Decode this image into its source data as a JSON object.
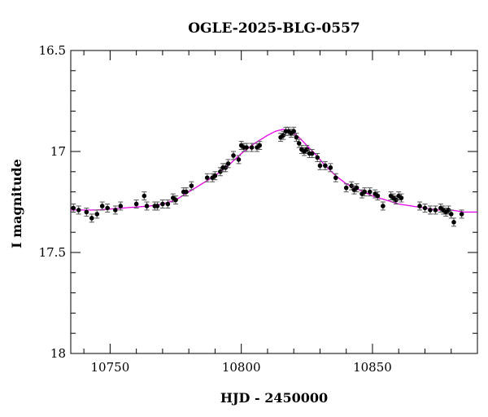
{
  "chart_data": {
    "type": "scatter",
    "title": "OGLE-2025-BLG-0557",
    "xlabel": "HJD - 2450000",
    "ylabel": "I magnitude",
    "xlim": [
      10735,
      10890
    ],
    "ylim": [
      16.5,
      18.0
    ],
    "y_inverted": true,
    "x_ticks": [
      10750,
      10800,
      10850
    ],
    "x_tick_labels": [
      "10750",
      "10800",
      "10850"
    ],
    "y_ticks": [
      16.5,
      17.0,
      17.5,
      18.0
    ],
    "y_tick_labels": [
      "16.5",
      "17",
      "17.5",
      "18"
    ],
    "grid": false,
    "legend": "none",
    "colors": {
      "points": "#000000",
      "errorbars": "#555555",
      "model": "#e600e6",
      "frame": "#000000"
    },
    "series": [
      {
        "kind": "points-with-errorbars",
        "x": [
          10736,
          10738,
          10741,
          10743,
          10745,
          10747,
          10749,
          10752,
          10754,
          10760,
          10763,
          10764,
          10767,
          10768,
          10770,
          10772,
          10774,
          10775,
          10778,
          10779,
          10781,
          10787,
          10789,
          10790,
          10792,
          10793,
          10794,
          10795,
          10797,
          10799,
          10800,
          10801,
          10802,
          10804,
          10806,
          10807,
          10815,
          10816,
          10817,
          10818,
          10819,
          10820,
          10821,
          10822,
          10823,
          10824,
          10825,
          10826,
          10827,
          10829,
          10830,
          10832,
          10834,
          10836,
          10840,
          10842,
          10843,
          10844,
          10846,
          10847,
          10849,
          10851,
          10852,
          10854,
          10857,
          10858,
          10859,
          10860,
          10861,
          10868,
          10870,
          10872,
          10874,
          10876,
          10877,
          10878,
          10879,
          10880,
          10881,
          10884
        ],
        "y": [
          17.28,
          17.29,
          17.3,
          17.33,
          17.31,
          17.27,
          17.28,
          17.29,
          17.27,
          17.26,
          17.22,
          17.27,
          17.27,
          17.27,
          17.26,
          17.26,
          17.23,
          17.24,
          17.2,
          17.2,
          17.17,
          17.13,
          17.13,
          17.12,
          17.1,
          17.08,
          17.08,
          17.06,
          17.02,
          17.04,
          16.97,
          16.98,
          16.98,
          16.98,
          16.98,
          16.97,
          16.93,
          16.92,
          16.9,
          16.9,
          16.91,
          16.9,
          16.93,
          16.96,
          16.99,
          17.0,
          16.99,
          17.01,
          17.01,
          17.03,
          17.07,
          17.07,
          17.08,
          17.13,
          17.18,
          17.17,
          17.19,
          17.18,
          17.21,
          17.2,
          17.2,
          17.21,
          17.22,
          17.27,
          17.22,
          17.23,
          17.24,
          17.22,
          17.23,
          17.27,
          17.28,
          17.29,
          17.29,
          17.28,
          17.29,
          17.3,
          17.29,
          17.31,
          17.35,
          17.31
        ],
        "yerr": [
          0.02,
          0.02,
          0.02,
          0.02,
          0.02,
          0.02,
          0.02,
          0.02,
          0.02,
          0.02,
          0.02,
          0.02,
          0.02,
          0.02,
          0.02,
          0.02,
          0.02,
          0.02,
          0.02,
          0.02,
          0.02,
          0.02,
          0.02,
          0.02,
          0.02,
          0.02,
          0.02,
          0.02,
          0.02,
          0.02,
          0.02,
          0.02,
          0.02,
          0.02,
          0.02,
          0.02,
          0.02,
          0.02,
          0.02,
          0.02,
          0.02,
          0.02,
          0.02,
          0.02,
          0.02,
          0.02,
          0.02,
          0.02,
          0.02,
          0.02,
          0.02,
          0.02,
          0.02,
          0.02,
          0.02,
          0.02,
          0.02,
          0.02,
          0.02,
          0.02,
          0.02,
          0.02,
          0.02,
          0.02,
          0.02,
          0.02,
          0.02,
          0.02,
          0.02,
          0.02,
          0.02,
          0.02,
          0.02,
          0.02,
          0.02,
          0.02,
          0.02,
          0.02,
          0.02,
          0.02
        ]
      },
      {
        "kind": "model-line",
        "x": [
          10735,
          10745,
          10755,
          10765,
          10770,
          10775,
          10780,
          10785,
          10790,
          10795,
          10800,
          10805,
          10810,
          10813,
          10816,
          10819,
          10822,
          10825,
          10828,
          10832,
          10836,
          10840,
          10845,
          10850,
          10855,
          10860,
          10865,
          10870,
          10875,
          10880,
          10885,
          10890
        ],
        "y": [
          17.29,
          17.29,
          17.28,
          17.27,
          17.26,
          17.24,
          17.2,
          17.16,
          17.12,
          17.07,
          17.01,
          16.96,
          16.92,
          16.9,
          16.89,
          16.9,
          16.93,
          16.97,
          17.01,
          17.07,
          17.12,
          17.16,
          17.19,
          17.22,
          17.24,
          17.26,
          17.27,
          17.28,
          17.29,
          17.29,
          17.3,
          17.3
        ]
      }
    ]
  }
}
